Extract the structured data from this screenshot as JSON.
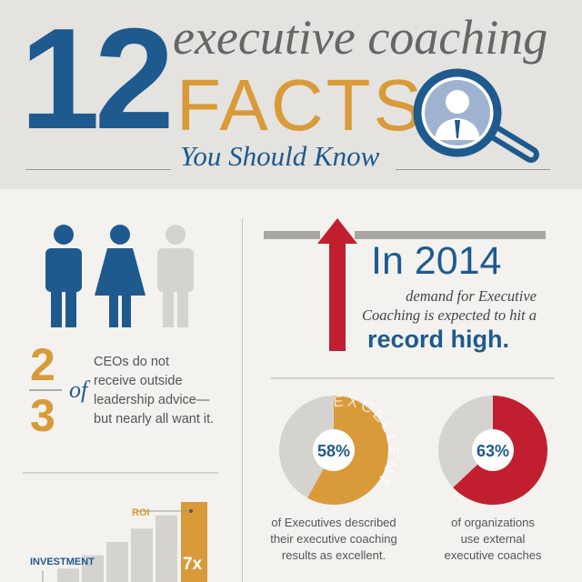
{
  "header": {
    "number": "12",
    "line1": "executive coaching",
    "line2": "FACTS",
    "line3": "You Should Know",
    "icon": "magnifier-businessman-icon"
  },
  "ceo": {
    "numerator": "2",
    "denominator": "3",
    "of": "of",
    "text": [
      "CEOs do not",
      "receive outside",
      "leadership advice—",
      "but nearly all want it."
    ],
    "icons": [
      "man-icon",
      "woman-icon",
      "man-icon"
    ]
  },
  "demand": {
    "year": "In 2014",
    "text": [
      "demand for Executive",
      "Coaching is expected to hit a"
    ],
    "highlight": "record high.",
    "icon": "up-arrow-icon"
  },
  "donuts": [
    {
      "value": 58,
      "label": "58%",
      "ring_text": "EXCELLENT",
      "caption": [
        "of Executives described",
        "their executive coaching",
        "results as excellent."
      ],
      "color": "#d99a3a"
    },
    {
      "value": 63,
      "label": "63%",
      "caption": [
        "of organizations",
        "use external",
        "executive coaches"
      ],
      "color": "#c11f30"
    }
  ],
  "roi": {
    "investment_label": "INVESTMENT",
    "roi_label": "ROI",
    "multiplier": "7x",
    "bars": [
      1,
      2,
      3,
      4,
      5,
      6
    ]
  },
  "colors": {
    "blue": "#1f5a8e",
    "orange": "#d99a3a",
    "red": "#c11f30",
    "gray": "#d4d3d0"
  }
}
